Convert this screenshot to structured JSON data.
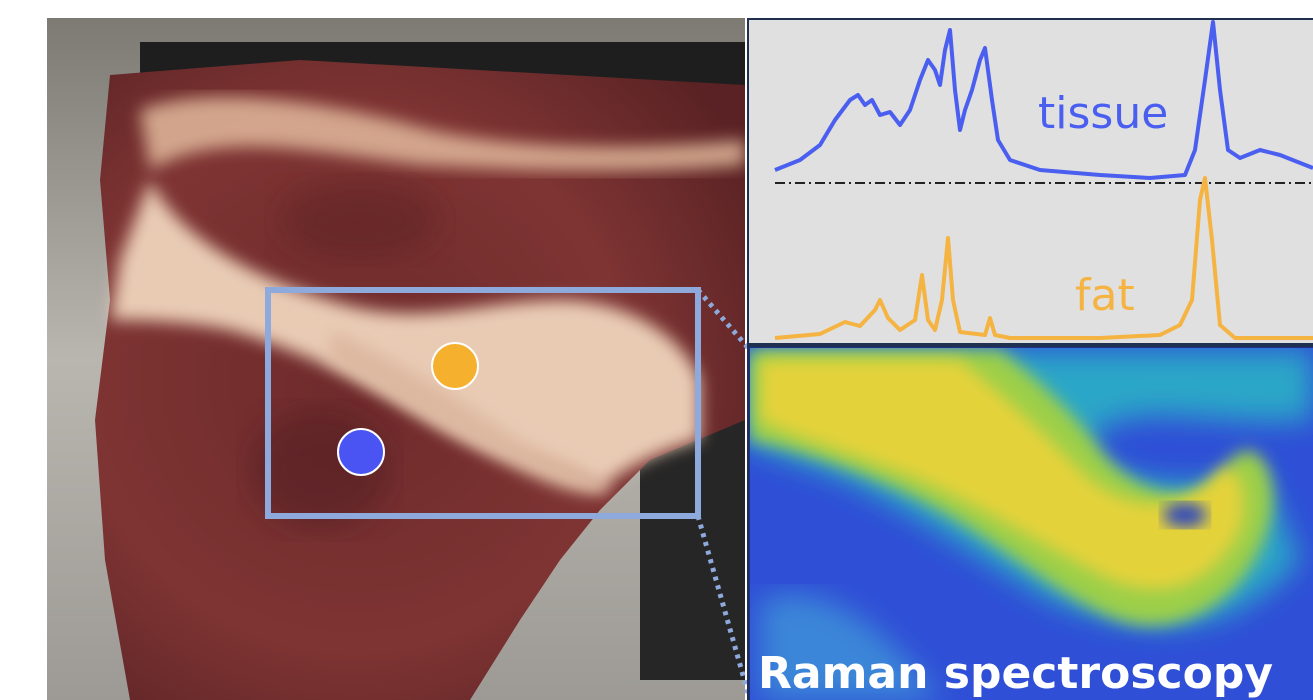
{
  "spectra": [
    {
      "label": "tissue"
    },
    {
      "label": "fat"
    }
  ],
  "image_caption": "Raman spectroscopy"
}
